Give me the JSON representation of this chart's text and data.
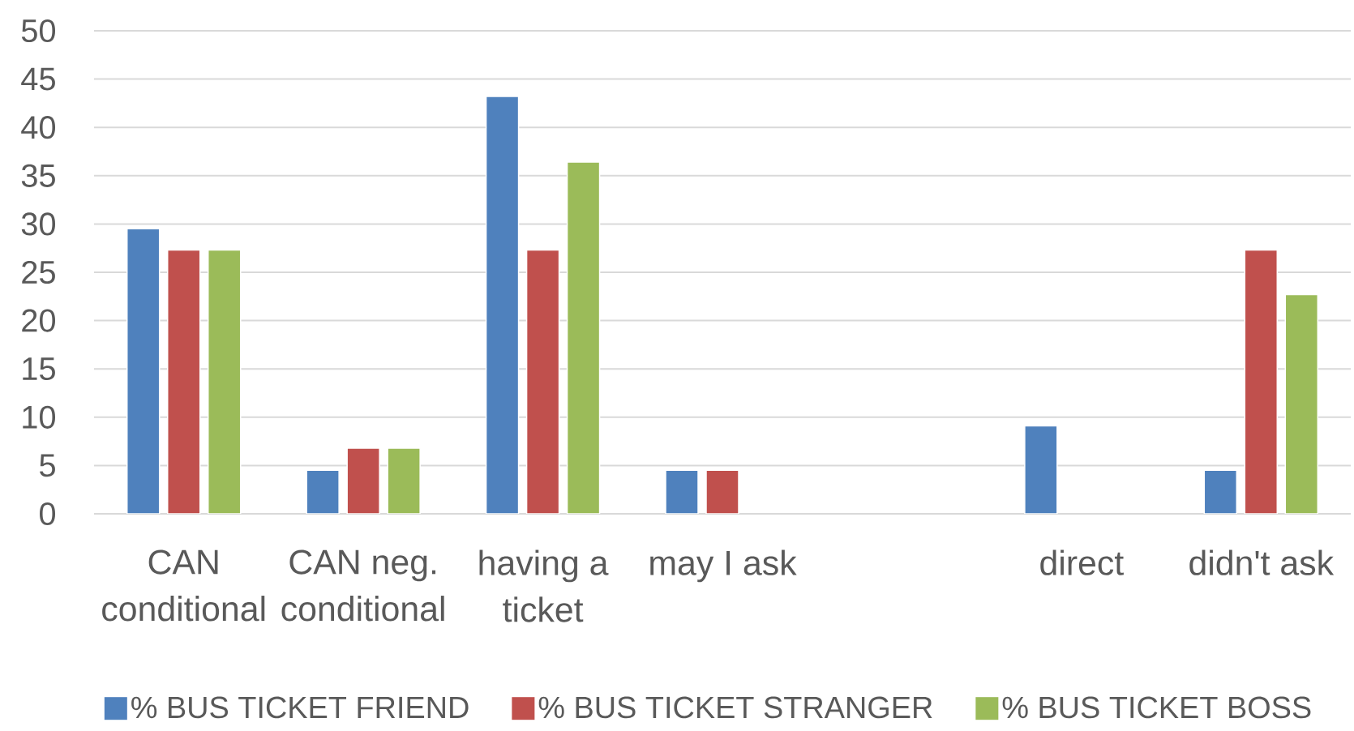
{
  "chart_data": {
    "type": "bar",
    "categories": [
      "CAN conditional",
      "CAN neg. conditional",
      "having a ticket",
      "may I ask",
      null,
      "direct",
      "didn't ask"
    ],
    "series": [
      {
        "name": "% BUS TICKET FRIEND",
        "color": "#4f81bd",
        "values": [
          29.5,
          4.5,
          43.2,
          4.5,
          null,
          9.1,
          4.5
        ]
      },
      {
        "name": "% BUS TICKET STRANGER",
        "color": "#c0504d",
        "values": [
          27.3,
          6.8,
          27.3,
          4.5,
          null,
          null,
          27.3
        ]
      },
      {
        "name": "% BUS TICKET BOSS",
        "color": "#9bbb59",
        "values": [
          27.3,
          6.8,
          36.4,
          null,
          null,
          null,
          22.7
        ]
      }
    ],
    "ylim": [
      0,
      50
    ],
    "yticks": [
      0,
      5,
      10,
      15,
      20,
      25,
      30,
      35,
      40,
      45,
      50
    ],
    "grid": "y",
    "legend": "bottom"
  }
}
